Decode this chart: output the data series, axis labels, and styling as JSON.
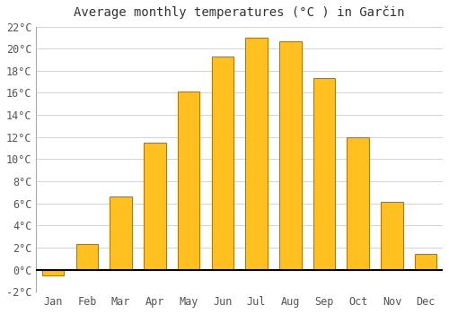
{
  "title": "Average monthly temperatures (°C ) in Garčin",
  "months": [
    "Jan",
    "Feb",
    "Mar",
    "Apr",
    "May",
    "Jun",
    "Jul",
    "Aug",
    "Sep",
    "Oct",
    "Nov",
    "Dec"
  ],
  "values": [
    -0.5,
    2.3,
    6.6,
    11.5,
    16.1,
    19.3,
    21.0,
    20.7,
    17.3,
    12.0,
    6.1,
    1.4
  ],
  "bar_color": "#FFC020",
  "bar_edge_color": "#B87800",
  "ylim": [
    -2,
    22
  ],
  "yticks": [
    -2,
    0,
    2,
    4,
    6,
    8,
    10,
    12,
    14,
    16,
    18,
    20,
    22
  ],
  "background_color": "#ffffff",
  "grid_color": "#cccccc",
  "title_fontsize": 10,
  "tick_fontsize": 8.5,
  "figsize": [
    5.0,
    3.5
  ],
  "dpi": 100
}
